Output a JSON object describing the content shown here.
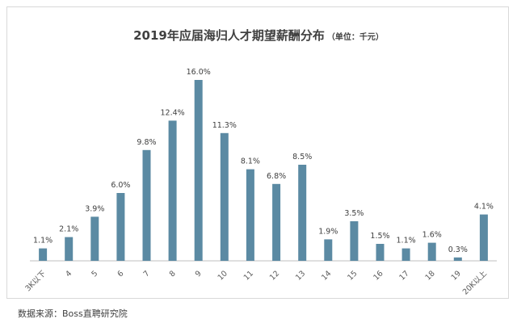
{
  "source": "数据来源：Boss直聘研究院",
  "chart_data": {
    "type": "bar",
    "title": "2019年应届海归人才期望薪酬分布",
    "subtitle": "（单位：千元）",
    "xlabel": "",
    "ylabel": "",
    "categories": [
      "3K以下",
      "4",
      "5",
      "6",
      "7",
      "8",
      "9",
      "10",
      "11",
      "12",
      "13",
      "14",
      "15",
      "16",
      "17",
      "18",
      "19",
      "20K以上"
    ],
    "values": [
      1.1,
      2.1,
      3.9,
      6.0,
      9.8,
      12.4,
      16.0,
      11.3,
      8.1,
      6.8,
      8.5,
      1.9,
      3.5,
      1.5,
      1.1,
      1.6,
      0.3,
      4.1
    ],
    "value_labels": [
      "1.1%",
      "2.1%",
      "3.9%",
      "6.0%",
      "9.8%",
      "12.4%",
      "16.0%",
      "11.3%",
      "8.1%",
      "6.8%",
      "8.5%",
      "1.9%",
      "3.5%",
      "1.5%",
      "1.1%",
      "1.6%",
      "0.3%",
      "4.1%"
    ],
    "value_unit": "%",
    "ylim": [
      0,
      16.0
    ],
    "grid": false,
    "legend": "none",
    "bar_color": "#5b8aa3",
    "axis_color": "#bfbfbf"
  }
}
